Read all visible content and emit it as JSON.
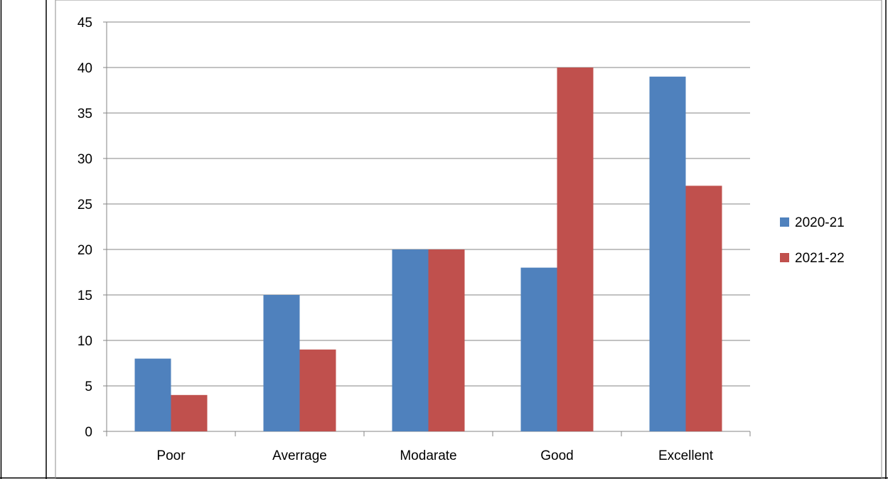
{
  "chart_data": {
    "type": "bar",
    "title": "",
    "xlabel": "",
    "ylabel": "",
    "categories": [
      "Poor",
      "Averrage",
      "Modarate",
      "Good",
      "Excellent"
    ],
    "series": [
      {
        "name": "2020-21",
        "color": "#4f81bd",
        "values": [
          8,
          15,
          20,
          18,
          39
        ]
      },
      {
        "name": "2021-22",
        "color": "#c0504d",
        "values": [
          4,
          9,
          20,
          40,
          27
        ]
      }
    ],
    "ylim": [
      0,
      45
    ],
    "yticks": [
      0,
      5,
      10,
      15,
      20,
      25,
      30,
      35,
      40,
      45
    ],
    "grid": true,
    "legend": "right"
  }
}
